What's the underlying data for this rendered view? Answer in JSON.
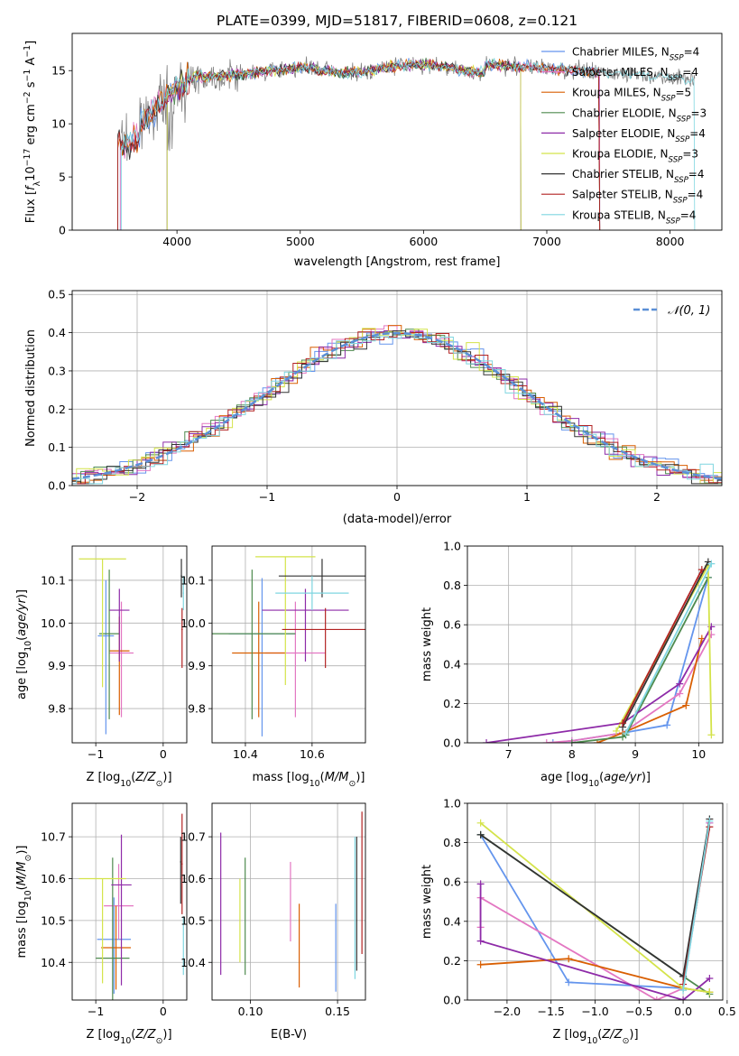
{
  "chart_data": [
    {
      "id": "spectrum",
      "type": "line",
      "title": "PLATE=0399, MJD=51817, FIBERID=0608, z=0.121",
      "xlabel": "wavelength [Angstrom, rest frame]",
      "ylabel": "Flux [f_λ 10^-17 erg cm^-2 s^-1 A^-1]",
      "xlim": [
        3150,
        8420
      ],
      "ylim": [
        0,
        18.5
      ],
      "xticks": [
        4000,
        5000,
        6000,
        7000,
        8000
      ],
      "yticks": [
        0,
        5,
        10,
        15
      ],
      "legend": "top-right",
      "observed": {
        "color": "#808080",
        "range": [
          3550,
          8200
        ]
      },
      "series": [
        {
          "name": "Chabrier MILES, N_SSP=4",
          "color": "#6495ed",
          "range": [
            3540,
            7430
          ]
        },
        {
          "name": "Salpeter MILES, N_SSP=4",
          "color": "#e377c2",
          "range": [
            3540,
            7430
          ]
        },
        {
          "name": "Kroupa MILES, N_SSP=5",
          "color": "#d95f02",
          "range": [
            3520,
            7430
          ]
        },
        {
          "name": "Chabrier ELODIE, N_SSP=3",
          "color": "#4e8a4e",
          "range": [
            3920,
            6790
          ]
        },
        {
          "name": "Salpeter ELODIE, N_SSP=4",
          "color": "#8e2ba8",
          "range": [
            3920,
            6790
          ]
        },
        {
          "name": "Kroupa ELODIE, N_SSP=3",
          "color": "#d4e34a",
          "range": [
            3920,
            6790
          ]
        },
        {
          "name": "Chabrier STELIB, N_SSP=4",
          "color": "#333333",
          "range": [
            3520,
            7430
          ]
        },
        {
          "name": "Salpeter STELIB, N_SSP=4",
          "color": "#b22222",
          "range": [
            3520,
            7430
          ]
        },
        {
          "name": "Kroupa STELIB, N_SSP=4",
          "color": "#7fd6e0",
          "range": [
            3550,
            8200
          ]
        }
      ]
    },
    {
      "id": "residuals",
      "type": "histogram",
      "xlabel": "(data-model)/error",
      "ylabel": "Normed distribution",
      "xlim": [
        -2.5,
        2.5
      ],
      "ylim": [
        0,
        0.51
      ],
      "xticks": [
        -2,
        -1,
        0,
        1,
        2
      ],
      "yticks": [
        0.0,
        0.1,
        0.2,
        0.3,
        0.4,
        0.5
      ],
      "grid": true,
      "legend": {
        "label": "𝒩(0, 1)",
        "position": "top-right",
        "color": "#5b8fd6"
      },
      "bin_width": 0.1
    },
    {
      "id": "age_vs_Z",
      "type": "errorbar",
      "xlabel": "Z [log10(Z/Z⊙)]",
      "ylabel": "age  [log10(age/yr)]",
      "xlim": [
        -1.35,
        0.35
      ],
      "ylim": [
        9.72,
        10.18
      ],
      "xticks": [
        -1,
        0
      ],
      "yticks": [
        9.8,
        9.9,
        10.0,
        10.1
      ],
      "grid": true,
      "points": [
        {
          "x": -0.85,
          "xerr": 0.12,
          "y": 9.97,
          "yerr": [
            0.23,
            0.13
          ],
          "color": "#6495ed"
        },
        {
          "x": -0.62,
          "xerr": 0.18,
          "y": 9.93,
          "yerr": [
            0.15,
            0.12
          ],
          "color": "#e377c2"
        },
        {
          "x": -0.65,
          "xerr": 0.15,
          "y": 9.935,
          "yerr": [
            0.15,
            0.08
          ],
          "color": "#d95f02"
        },
        {
          "x": -0.8,
          "xerr": 0.15,
          "y": 9.975,
          "yerr": [
            0.2,
            0.15
          ],
          "color": "#4e8a4e"
        },
        {
          "x": -0.65,
          "xerr": 0.15,
          "y": 10.03,
          "yerr": [
            0.12,
            0.05
          ],
          "color": "#8e2ba8"
        },
        {
          "x": -0.9,
          "xerr": 0.35,
          "y": 10.15,
          "yerr": [
            0.3,
            0.0
          ],
          "color": "#d4e34a"
        },
        {
          "x": 0.27,
          "xerr": 0.01,
          "y": 10.11,
          "yerr": [
            0.05,
            0.04
          ],
          "color": "#333333"
        },
        {
          "x": 0.28,
          "xerr": 0.01,
          "y": 9.985,
          "yerr": [
            0.09,
            0.05
          ],
          "color": "#b22222"
        },
        {
          "x": 0.3,
          "xerr": 0.01,
          "y": 10.07,
          "yerr": [
            0.04,
            0.04
          ],
          "color": "#7fd6e0"
        }
      ]
    },
    {
      "id": "age_vs_mass",
      "type": "errorbar",
      "xlabel": "mass [log10(M/M⊙)]",
      "ylabel": "",
      "xlim": [
        10.3,
        10.76
      ],
      "ylim": [
        9.72,
        10.18
      ],
      "xticks": [
        10.4,
        10.6
      ],
      "yticks": [
        9.8,
        9.9,
        10.0,
        10.1
      ],
      "grid": true,
      "points": [
        {
          "x": 10.45,
          "xerr": 0.1,
          "y": 9.975,
          "yerr": [
            0.24,
            0.13
          ],
          "color": "#6495ed"
        },
        {
          "x": 10.55,
          "xerr": 0.09,
          "y": 9.93,
          "yerr": [
            0.15,
            0.12
          ],
          "color": "#e377c2"
        },
        {
          "x": 10.44,
          "xerr": 0.08,
          "y": 9.93,
          "yerr": [
            0.15,
            0.12
          ],
          "color": "#d95f02"
        },
        {
          "x": 10.42,
          "xerr": 0.13,
          "y": 9.975,
          "yerr": [
            0.2,
            0.15
          ],
          "color": "#4e8a4e"
        },
        {
          "x": 10.58,
          "xerr": 0.13,
          "y": 10.03,
          "yerr": [
            0.12,
            0.05
          ],
          "color": "#8e2ba8"
        },
        {
          "x": 10.52,
          "xerr": 0.09,
          "y": 10.155,
          "yerr": [
            0.3,
            0.0
          ],
          "color": "#d4e34a"
        },
        {
          "x": 10.63,
          "xerr": 0.13,
          "y": 10.11,
          "yerr": [
            0.05,
            0.04
          ],
          "color": "#333333"
        },
        {
          "x": 10.64,
          "xerr": 0.13,
          "y": 9.985,
          "yerr": [
            0.09,
            0.05
          ],
          "color": "#b22222"
        },
        {
          "x": 10.6,
          "xerr": 0.11,
          "y": 10.07,
          "yerr": [
            0.04,
            0.04
          ],
          "color": "#7fd6e0"
        }
      ]
    },
    {
      "id": "mass_weight_vs_age",
      "type": "line",
      "xlabel": "age  [log10(age/yr)]",
      "ylabel": "mass weight",
      "xlim": [
        6.35,
        10.38
      ],
      "ylim": [
        0,
        1
      ],
      "xticks": [
        7,
        8,
        9,
        10
      ],
      "yticks": [
        0.0,
        0.2,
        0.4,
        0.6,
        0.8,
        1.0
      ],
      "grid": true,
      "series": [
        {
          "color": "#6495ed",
          "x": [
            7.7,
            8.0,
            8.8,
            9.5,
            10.15
          ],
          "y": [
            0.0,
            0.01,
            0.05,
            0.09,
            0.84
          ]
        },
        {
          "color": "#e377c2",
          "x": [
            7.6,
            8.0,
            8.8,
            9.7,
            10.2
          ],
          "y": [
            0.0,
            0.01,
            0.05,
            0.25,
            0.55
          ]
        },
        {
          "color": "#d95f02",
          "x": [
            8.4,
            8.8,
            9.8,
            10.05
          ],
          "y": [
            0.0,
            0.05,
            0.19,
            0.53
          ]
        },
        {
          "color": "#4e8a4e",
          "x": [
            8.0,
            8.8,
            8.85,
            10.15
          ],
          "y": [
            0.0,
            0.03,
            0.04,
            0.84
          ]
        },
        {
          "color": "#8e2ba8",
          "x": [
            6.65,
            8.8,
            9.7,
            10.2
          ],
          "y": [
            0.0,
            0.1,
            0.3,
            0.59
          ]
        },
        {
          "color": "#d4e34a",
          "x": [
            8.7,
            10.15,
            10.2
          ],
          "y": [
            0.06,
            0.9,
            0.04
          ]
        },
        {
          "color": "#333333",
          "x": [
            8.8,
            10.15
          ],
          "y": [
            0.08,
            0.92
          ]
        },
        {
          "color": "#b22222",
          "x": [
            8.8,
            10.05
          ],
          "y": [
            0.1,
            0.88
          ]
        },
        {
          "color": "#7fd6e0",
          "x": [
            8.85,
            10.2
          ],
          "y": [
            0.05,
            0.91
          ]
        }
      ]
    },
    {
      "id": "mass_vs_Z",
      "type": "errorbar",
      "xlabel": "Z [log10(Z/Z⊙)]",
      "ylabel": "mass [log10(M/M⊙)]",
      "xlim": [
        -1.35,
        0.35
      ],
      "ylim": [
        10.31,
        10.78
      ],
      "xticks": [
        -1,
        0
      ],
      "yticks": [
        10.4,
        10.5,
        10.6,
        10.7
      ],
      "grid": true,
      "points": [
        {
          "x": -0.73,
          "xerr": 0.25,
          "y": 10.455,
          "yerr": [
            0.13,
            0.1
          ],
          "color": "#6495ed"
        },
        {
          "x": -0.66,
          "xerr": 0.22,
          "y": 10.535,
          "yerr": [
            0.08,
            0.1
          ],
          "color": "#e377c2"
        },
        {
          "x": -0.7,
          "xerr": 0.22,
          "y": 10.435,
          "yerr": [
            0.1,
            0.1
          ],
          "color": "#d95f02"
        },
        {
          "x": -0.75,
          "xerr": 0.25,
          "y": 10.41,
          "yerr": [
            0.1,
            0.24
          ],
          "color": "#4e8a4e"
        },
        {
          "x": -0.62,
          "xerr": 0.15,
          "y": 10.585,
          "yerr": [
            0.24,
            0.12
          ],
          "color": "#8e2ba8"
        },
        {
          "x": -0.9,
          "xerr": 0.35,
          "y": 10.6,
          "yerr": [
            0.25,
            0.0
          ],
          "color": "#d4e34a"
        },
        {
          "x": 0.26,
          "xerr": 0.01,
          "y": 10.64,
          "yerr": [
            0.1,
            0.06
          ],
          "color": "#333333"
        },
        {
          "x": 0.28,
          "xerr": 0.01,
          "y": 10.635,
          "yerr": [
            0.12,
            0.12
          ],
          "color": "#b22222"
        },
        {
          "x": 0.3,
          "xerr": 0.01,
          "y": 10.41,
          "yerr": [
            0.04,
            0.1
          ],
          "color": "#7fd6e0"
        }
      ]
    },
    {
      "id": "mass_vs_ebv",
      "type": "errorbar",
      "xlabel": "E(B-V)",
      "ylabel": "",
      "xlim": [
        0.078,
        0.166
      ],
      "ylim": [
        10.31,
        10.78
      ],
      "xticks": [
        0.1,
        0.15
      ],
      "yticks": [
        10.4,
        10.5,
        10.6,
        10.7
      ],
      "grid": true,
      "points": [
        {
          "x": 0.149,
          "y": 10.44,
          "yerr": [
            0.11,
            0.1
          ],
          "color": "#6495ed"
        },
        {
          "x": 0.123,
          "y": 10.54,
          "yerr": [
            0.09,
            0.1
          ],
          "color": "#e377c2"
        },
        {
          "x": 0.128,
          "y": 10.44,
          "yerr": [
            0.1,
            0.1
          ],
          "color": "#d95f02"
        },
        {
          "x": 0.097,
          "y": 10.41,
          "yerr": [
            0.04,
            0.24
          ],
          "color": "#4e8a4e"
        },
        {
          "x": 0.083,
          "y": 10.54,
          "yerr": [
            0.17,
            0.17
          ],
          "color": "#8e2ba8"
        },
        {
          "x": 0.094,
          "y": 10.53,
          "yerr": [
            0.13,
            0.07
          ],
          "color": "#d4e34a"
        },
        {
          "x": 0.161,
          "y": 10.58,
          "yerr": [
            0.2,
            0.12
          ],
          "color": "#333333"
        },
        {
          "x": 0.164,
          "y": 10.59,
          "yerr": [
            0.17,
            0.17
          ],
          "color": "#b22222"
        },
        {
          "x": 0.16,
          "y": 10.46,
          "yerr": [
            0.1,
            0.24
          ],
          "color": "#7fd6e0"
        }
      ]
    },
    {
      "id": "mass_weight_vs_Z",
      "type": "line",
      "xlabel": "Z [log10(Z/Z⊙)]",
      "ylabel": "mass weight",
      "xlim": [
        -2.45,
        0.45
      ],
      "ylim": [
        0,
        1
      ],
      "xticks": [
        -2.0,
        -1.5,
        -1.0,
        -0.5,
        0.0,
        0.5
      ],
      "yticks": [
        0.0,
        0.2,
        0.4,
        0.6,
        0.8,
        1.0
      ],
      "grid": true,
      "series": [
        {
          "color": "#6495ed",
          "x": [
            -2.3,
            -1.3,
            0.0,
            0.3
          ],
          "y": [
            0.84,
            0.09,
            0.06,
            0.9
          ]
        },
        {
          "color": "#e377c2",
          "x": [
            -2.3,
            -2.3,
            -0.3,
            0.0,
            0.3
          ],
          "y": [
            0.37,
            0.52,
            0.0,
            0.06,
            0.9
          ]
        },
        {
          "color": "#d95f02",
          "x": [
            -2.3,
            -1.3,
            0.0,
            0.3
          ],
          "y": [
            0.18,
            0.21,
            0.06,
            0.04
          ]
        },
        {
          "color": "#4e8a4e",
          "x": [
            -2.3,
            0.0,
            0.3
          ],
          "y": [
            0.84,
            0.12,
            0.03
          ]
        },
        {
          "color": "#8e2ba8",
          "x": [
            -2.3,
            -2.3,
            0.0,
            0.3
          ],
          "y": [
            0.59,
            0.3,
            0.0,
            0.11
          ]
        },
        {
          "color": "#d4e34a",
          "x": [
            -2.3,
            0.0,
            0.3
          ],
          "y": [
            0.9,
            0.06,
            0.04
          ]
        },
        {
          "color": "#333333",
          "x": [
            -2.3,
            0.0,
            0.3
          ],
          "y": [
            0.84,
            0.12,
            0.92
          ]
        },
        {
          "color": "#b22222",
          "x": [
            0.0,
            0.3
          ],
          "y": [
            0.08,
            0.88
          ]
        },
        {
          "color": "#7fd6e0",
          "x": [
            0.0,
            0.3
          ],
          "y": [
            0.05,
            0.91
          ]
        }
      ]
    }
  ]
}
